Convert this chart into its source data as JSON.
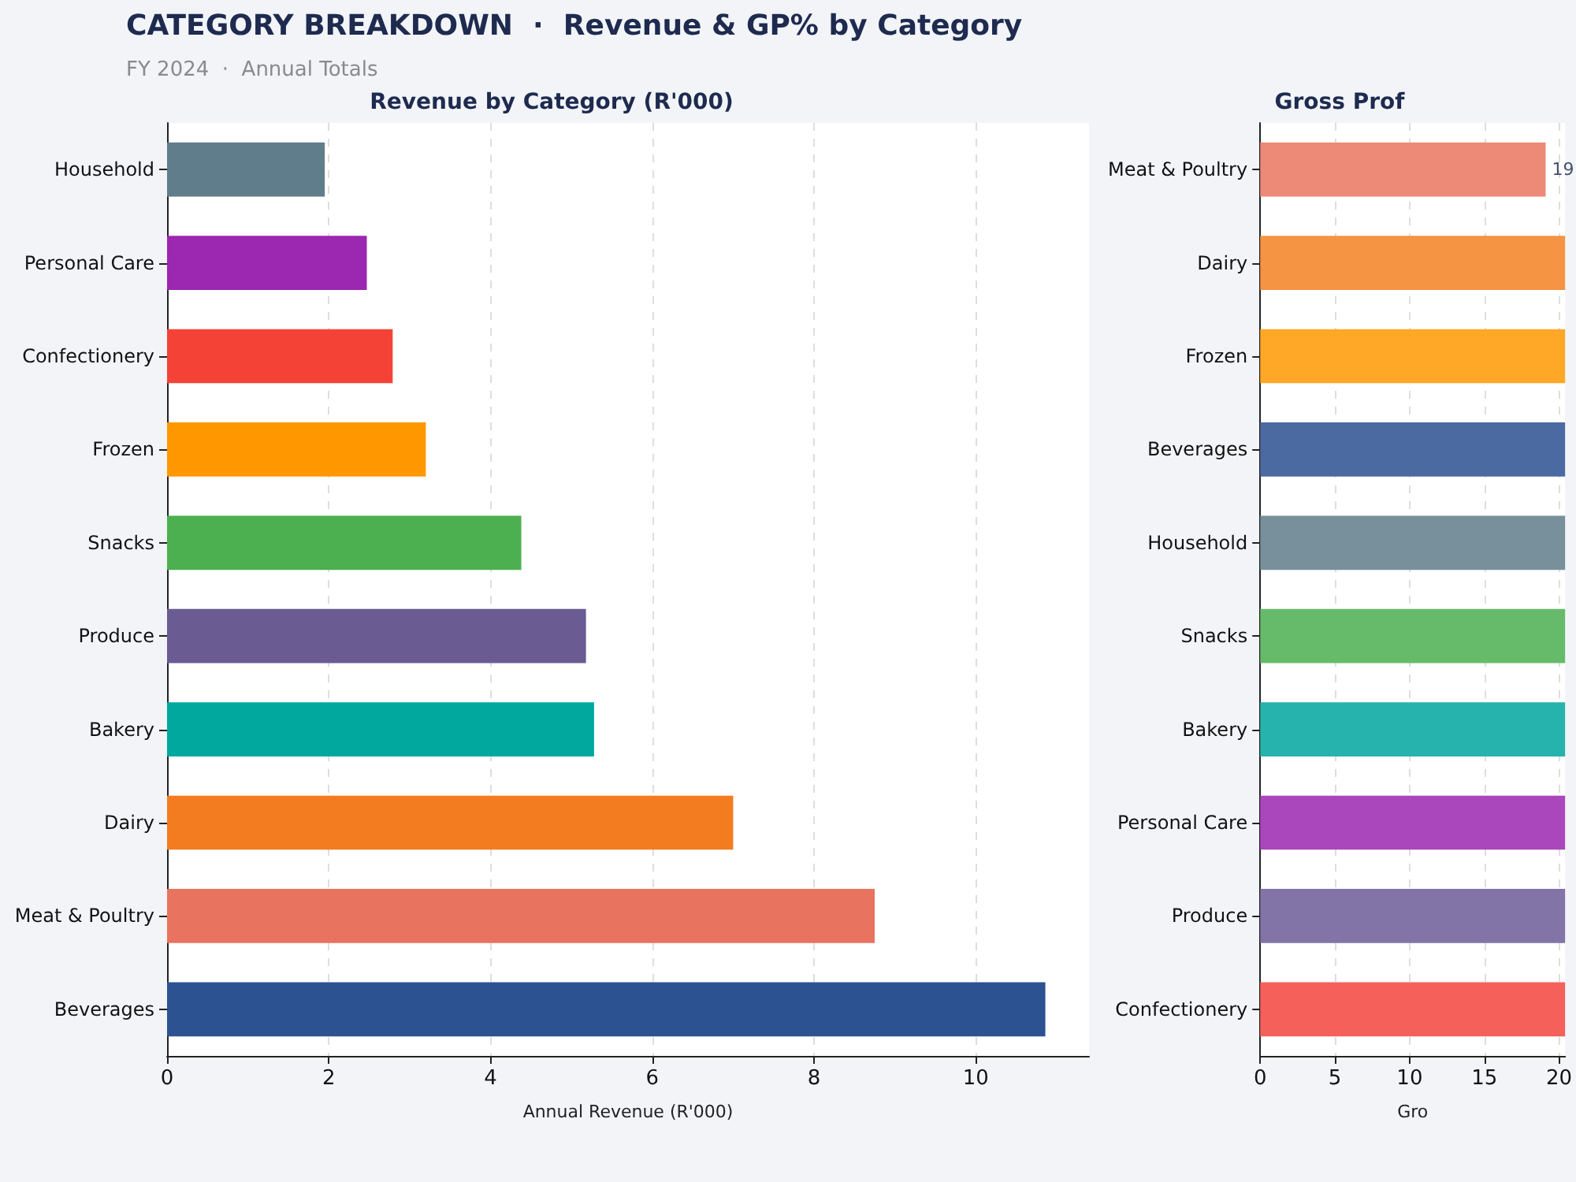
{
  "chart_data": [
    {
      "type": "other",
      "title": "CATEGORY BREAKDOWN  ·  Revenue & GP% by Category",
      "subtitle": "FY 2024  ·  Annual Totals"
    },
    {
      "type": "bar",
      "orientation": "horizontal",
      "title": "Revenue by Category (R'000)",
      "xlabel": "Annual Revenue (R'000)",
      "categories": [
        "Household",
        "Personal Care",
        "Confectionery",
        "Frozen",
        "Snacks",
        "Produce",
        "Bakery",
        "Dairy",
        "Meat & Poultry",
        "Beverages"
      ],
      "values": [
        1.95,
        2.47,
        2.79,
        3.2,
        4.38,
        5.18,
        5.28,
        7.0,
        8.75,
        10.86
      ],
      "colors": [
        "#607d8b",
        "#9c27b0",
        "#f44336",
        "#ff9800",
        "#4caf50",
        "#6a5b93",
        "#00a89e",
        "#f47c20",
        "#e8735e",
        "#2d5291"
      ],
      "xlim": [
        0,
        11.4
      ],
      "xticks": [
        0,
        2,
        4,
        6,
        8,
        10
      ],
      "grid": "x"
    },
    {
      "type": "bar",
      "orientation": "horizontal",
      "title": "Gross Prof",
      "xlabel": "Gro",
      "categories": [
        "Meat & Poultry",
        "Dairy",
        "Frozen",
        "Beverages",
        "Household",
        "Snacks",
        "Bakery",
        "Personal Care",
        "Produce",
        "Confectionery"
      ],
      "values": [
        19.1,
        20.4,
        20.4,
        20.4,
        20.4,
        20.4,
        20.4,
        20.4,
        20.4,
        20.4
      ],
      "value_labels": [
        "19",
        null,
        null,
        null,
        null,
        null,
        null,
        null,
        null,
        null
      ],
      "colors": [
        "#ec8a77",
        "#f59442",
        "#ffa726",
        "#4c6aa2",
        "#78909c",
        "#66bb6a",
        "#26b3ad",
        "#ab47bc",
        "#8274a7",
        "#f5605a"
      ],
      "xlim": [
        0,
        20.4
      ],
      "xticks": [
        0,
        5,
        10,
        15,
        20
      ],
      "grid": "x"
    }
  ]
}
